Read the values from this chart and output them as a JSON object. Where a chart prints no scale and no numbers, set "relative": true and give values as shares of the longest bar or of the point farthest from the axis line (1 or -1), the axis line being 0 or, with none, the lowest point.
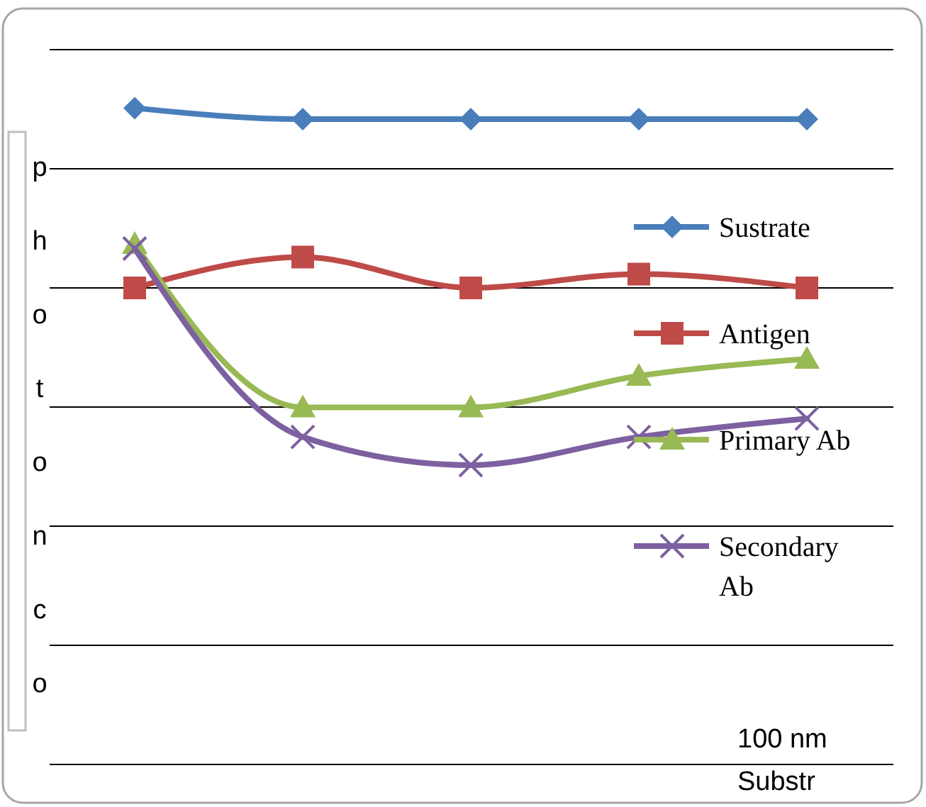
{
  "chart_data": {
    "type": "line",
    "relative": true,
    "ylabel": "photonco",
    "xlabel": "100 nm Substr",
    "categories": [
      null,
      null,
      null,
      null,
      null
    ],
    "grid": "y",
    "legend": "right",
    "series": [
      {
        "name": "Sustrate",
        "color": "#4a7ebb",
        "marker": "diamond",
        "values": [
          1,
          0.983,
          0.983,
          0.983,
          0.983
        ]
      },
      {
        "name": "Antigen",
        "color": "#be4b48",
        "marker": "square",
        "values": [
          0.726,
          0.773,
          0.726,
          0.747,
          0.726
        ]
      },
      {
        "name": "Primary Ab",
        "color": "#98b954",
        "marker": "triangle",
        "values": [
          0.793,
          0.544,
          0.544,
          0.592,
          0.618
        ]
      },
      {
        "name": "Secondary Ab",
        "color": "#7d60a0",
        "marker": "cross",
        "values": [
          0.786,
          0.499,
          0.456,
          0.499,
          0.527
        ]
      }
    ]
  }
}
